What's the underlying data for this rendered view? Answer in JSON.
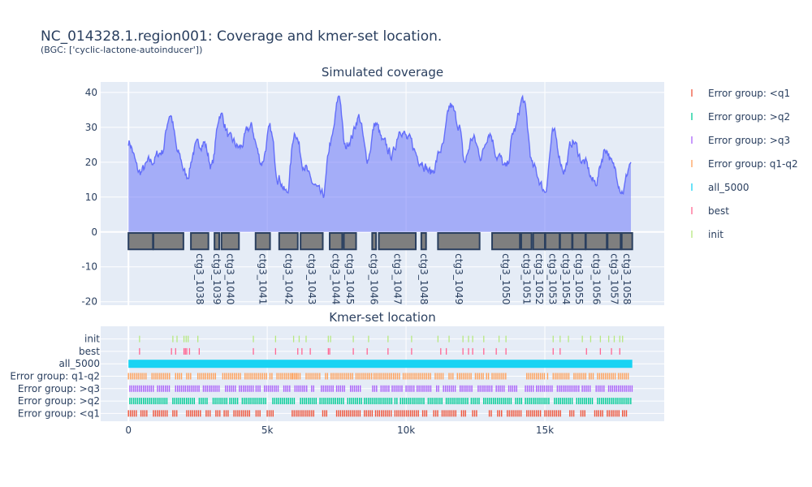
{
  "title": "NC_014328.1.region001: Coverage and kmer-set location.",
  "subtitle": "(BGC: ['cyclic-lactone-autoinducer'])",
  "chart_data": [
    {
      "type": "area",
      "title": "Simulated coverage",
      "xlim": [
        -1000,
        19300
      ],
      "ylim": [
        -21,
        43
      ],
      "yticks": [
        -20,
        -10,
        0,
        10,
        20,
        30,
        40
      ],
      "grid": true,
      "coverage_profile": {
        "x": [
          0,
          400,
          800,
          1200,
          1500,
          1800,
          2100,
          2400,
          2700,
          3000,
          3300,
          3700,
          4000,
          4400,
          4800,
          5100,
          5400,
          5700,
          6000,
          6300,
          6600,
          7000,
          7300,
          7600,
          7800,
          8000,
          8300,
          8600,
          8900,
          9200,
          9500,
          9800,
          10100,
          10500,
          10900,
          11300,
          11600,
          11900,
          12100,
          12400,
          12700,
          13000,
          13300,
          13600,
          13900,
          14200,
          14600,
          15000,
          15300,
          15700,
          16000,
          16400,
          16800,
          17200,
          17500,
          17800,
          18100
        ],
        "y": [
          26,
          17,
          20,
          23,
          34,
          22,
          16,
          24,
          26,
          19,
          34,
          26,
          24,
          30,
          20,
          29,
          16,
          11,
          29,
          20,
          14,
          10,
          26,
          39,
          24,
          27,
          33,
          21,
          31,
          25,
          22,
          30,
          26,
          21,
          17,
          24,
          36,
          31,
          20,
          27,
          22,
          29,
          22,
          18,
          29,
          38,
          18,
          12,
          28,
          18,
          26,
          20,
          14,
          24,
          18,
          12,
          20
        ]
      },
      "contigs": [
        {
          "label": "",
          "start": 0,
          "end": 880
        },
        {
          "label": "",
          "start": 900,
          "end": 1980
        },
        {
          "label": "ctg3_1038",
          "start": 2250,
          "end": 2880
        },
        {
          "label": "ctg3_1039",
          "start": 3100,
          "end": 3270
        },
        {
          "label": "ctg3_1040",
          "start": 3350,
          "end": 3980
        },
        {
          "label": "ctg3_1041",
          "start": 4580,
          "end": 5100
        },
        {
          "label": "ctg3_1042",
          "start": 5430,
          "end": 6100
        },
        {
          "label": "ctg3_1043",
          "start": 6200,
          "end": 7000
        },
        {
          "label": "ctg3_1044",
          "start": 7250,
          "end": 7700
        },
        {
          "label": "ctg3_1045",
          "start": 7760,
          "end": 8200
        },
        {
          "label": "ctg3_1046",
          "start": 8780,
          "end": 8920
        },
        {
          "label": "ctg3_1047",
          "start": 9020,
          "end": 10350
        },
        {
          "label": "ctg3_1048",
          "start": 10550,
          "end": 10720
        },
        {
          "label": "ctg3_1049",
          "start": 11150,
          "end": 12650
        },
        {
          "label": "ctg3_1050",
          "start": 13100,
          "end": 14100
        },
        {
          "label": "ctg3_1051",
          "start": 14150,
          "end": 14520
        },
        {
          "label": "ctg3_1052",
          "start": 14580,
          "end": 15000
        },
        {
          "label": "ctg3_1053",
          "start": 15020,
          "end": 15530
        },
        {
          "label": "ctg3_1054",
          "start": 15550,
          "end": 15980
        },
        {
          "label": "ctg3_1055",
          "start": 16000,
          "end": 16460
        },
        {
          "label": "ctg3_1056",
          "start": 16480,
          "end": 17230
        },
        {
          "label": "ctg3_1057",
          "start": 17260,
          "end": 17730
        },
        {
          "label": "ctg3_1058",
          "start": 17770,
          "end": 18150
        }
      ]
    },
    {
      "type": "scatter",
      "title": "Kmer-set location",
      "xlim": [
        -1000,
        19300
      ],
      "xticks": [
        {
          "value": 0,
          "label": "0"
        },
        {
          "value": 5000,
          "label": "5k"
        },
        {
          "value": 10000,
          "label": "10k"
        },
        {
          "value": 15000,
          "label": "15k"
        }
      ],
      "categories": [
        "init",
        "best",
        "all_5000",
        "Error group: q1-q2",
        "Error group: >q3",
        "Error group: >q2",
        "Error group: <q1"
      ],
      "series": [
        {
          "name": "init",
          "color": "#b6e880",
          "positions": [
            400,
            1600,
            1750,
            2000,
            2080,
            2150,
            2500,
            4500,
            5300,
            5950,
            6150,
            6400,
            7200,
            7280,
            8100,
            8650,
            9350,
            10200,
            11150,
            11550,
            12050,
            12250,
            12400,
            12800,
            13350,
            13600,
            15300,
            15550,
            15850,
            16350,
            16650,
            17000,
            17300,
            17500,
            17700,
            17800
          ]
        },
        {
          "name": "best",
          "color": "#ff6692",
          "positions": [
            400,
            1550,
            1700,
            2000,
            2050,
            2100,
            2200,
            2550,
            4500,
            5300,
            6100,
            6250,
            6550,
            7200,
            7250,
            8100,
            8600,
            9350,
            10200,
            11250,
            11450,
            12050,
            12250,
            12400,
            12800,
            13250,
            13600,
            15300,
            15550,
            16500,
            17000,
            17400,
            17700
          ]
        },
        {
          "name": "all_5000",
          "color": "#19d3f3",
          "segments": [
            [
              0,
              18150
            ]
          ]
        },
        {
          "name": "Error group: q1-q2",
          "color": "#ffa15a",
          "segments": [
            [
              0,
              700
            ],
            [
              850,
              1500
            ],
            [
              1700,
              1950
            ],
            [
              2100,
              2300
            ],
            [
              2500,
              3200
            ],
            [
              3400,
              4100
            ],
            [
              4200,
              5000
            ],
            [
              5100,
              5200
            ],
            [
              5350,
              6000
            ],
            [
              6050,
              6100
            ],
            [
              5900,
              6200
            ],
            [
              6400,
              6900
            ],
            [
              7100,
              7200
            ],
            [
              7300,
              8100
            ],
            [
              8200,
              8800
            ],
            [
              8850,
              9800
            ],
            [
              9900,
              10900
            ],
            [
              11050,
              11400
            ],
            [
              11550,
              11700
            ],
            [
              11850,
              12400
            ],
            [
              12500,
              12800
            ],
            [
              12900,
              13000
            ],
            [
              13100,
              13600
            ],
            [
              14350,
              15000
            ],
            [
              15100,
              15150
            ],
            [
              15300,
              15900
            ],
            [
              16050,
              16500
            ],
            [
              16600,
              16800
            ],
            [
              16900,
              17600
            ],
            [
              17650,
              18050
            ]
          ]
        },
        {
          "name": "Error group: >q3",
          "color": "#ab63fa",
          "segments": [
            [
              50,
              900
            ],
            [
              1050,
              1500
            ],
            [
              1700,
              2600
            ],
            [
              2700,
              3300
            ],
            [
              3500,
              3900
            ],
            [
              4000,
              4500
            ],
            [
              4600,
              4800
            ],
            [
              4900,
              5400
            ],
            [
              5600,
              5850
            ],
            [
              6000,
              6450
            ],
            [
              6600,
              6700
            ],
            [
              6950,
              7400
            ],
            [
              7500,
              7800
            ],
            [
              8000,
              8400
            ],
            [
              8800,
              9000
            ],
            [
              9100,
              9400
            ],
            [
              9500,
              9900
            ],
            [
              10000,
              10300
            ],
            [
              10400,
              10900
            ],
            [
              11100,
              11200
            ],
            [
              11350,
              11800
            ],
            [
              11950,
              12400
            ],
            [
              12600,
              13100
            ],
            [
              13250,
              13550
            ],
            [
              13700,
              14000
            ],
            [
              14300,
              14600
            ],
            [
              14700,
              15300
            ],
            [
              15450,
              16250
            ],
            [
              16350,
              16700
            ],
            [
              16850,
              17150
            ],
            [
              17300,
              18150
            ]
          ]
        },
        {
          "name": "Error group: >q2",
          "color": "#00cc96",
          "segments": [
            [
              50,
              1450
            ],
            [
              1600,
              2400
            ],
            [
              2550,
              2850
            ],
            [
              3050,
              3550
            ],
            [
              3650,
              3950
            ],
            [
              4100,
              4950
            ],
            [
              5200,
              6000
            ],
            [
              6200,
              6800
            ],
            [
              6900,
              7800
            ],
            [
              7900,
              8400
            ],
            [
              8500,
              9500
            ],
            [
              9600,
              9700
            ],
            [
              9800,
              10700
            ],
            [
              10800,
              11350
            ],
            [
              11450,
              12250
            ],
            [
              12350,
              12700
            ],
            [
              12800,
              13800
            ],
            [
              13950,
              14200
            ],
            [
              14300,
              15150
            ],
            [
              15350,
              16000
            ],
            [
              16150,
              16750
            ],
            [
              16900,
              18100
            ]
          ]
        },
        {
          "name": "Error group: <q1",
          "color": "#ef553b",
          "segments": [
            [
              0,
              350
            ],
            [
              450,
              700
            ],
            [
              900,
              1400
            ],
            [
              1600,
              1800
            ],
            [
              2100,
              2600
            ],
            [
              2800,
              3000
            ],
            [
              3150,
              3300
            ],
            [
              3450,
              3650
            ],
            [
              3800,
              4400
            ],
            [
              4600,
              4800
            ],
            [
              5000,
              5250
            ],
            [
              5900,
              6700
            ],
            [
              7000,
              7200
            ],
            [
              7500,
              8400
            ],
            [
              8500,
              8800
            ],
            [
              8900,
              9500
            ],
            [
              9600,
              10500
            ],
            [
              10600,
              10800
            ],
            [
              11000,
              11200
            ],
            [
              11300,
              11800
            ],
            [
              12000,
              12200
            ],
            [
              12400,
              12600
            ],
            [
              13000,
              13100
            ],
            [
              13300,
              13500
            ],
            [
              13650,
              14200
            ],
            [
              14350,
              14900
            ],
            [
              15000,
              15600
            ],
            [
              15900,
              16100
            ],
            [
              16300,
              16500
            ],
            [
              16800,
              17100
            ],
            [
              17250,
              17700
            ],
            [
              17800,
              18000
            ]
          ]
        }
      ]
    }
  ],
  "legend": {
    "placement": "right",
    "items": [
      {
        "label": "Error group: <q1",
        "color": "#ef553b"
      },
      {
        "label": "Error group: >q2",
        "color": "#00cc96"
      },
      {
        "label": "Error group: >q3",
        "color": "#ab63fa"
      },
      {
        "label": "Error group: q1-q2",
        "color": "#ffa15a"
      },
      {
        "label": "all_5000",
        "color": "#19d3f3"
      },
      {
        "label": "best",
        "color": "#ff6692"
      },
      {
        "label": "init",
        "color": "#b6e880"
      }
    ]
  },
  "colors": {
    "plot_bg": "#e5ecf6",
    "coverage_line": "#636efa",
    "coverage_fill": "rgba(99,110,250,0.5)",
    "contig_fill": "#7f7f7f",
    "contig_border": "#2a3f5f"
  }
}
